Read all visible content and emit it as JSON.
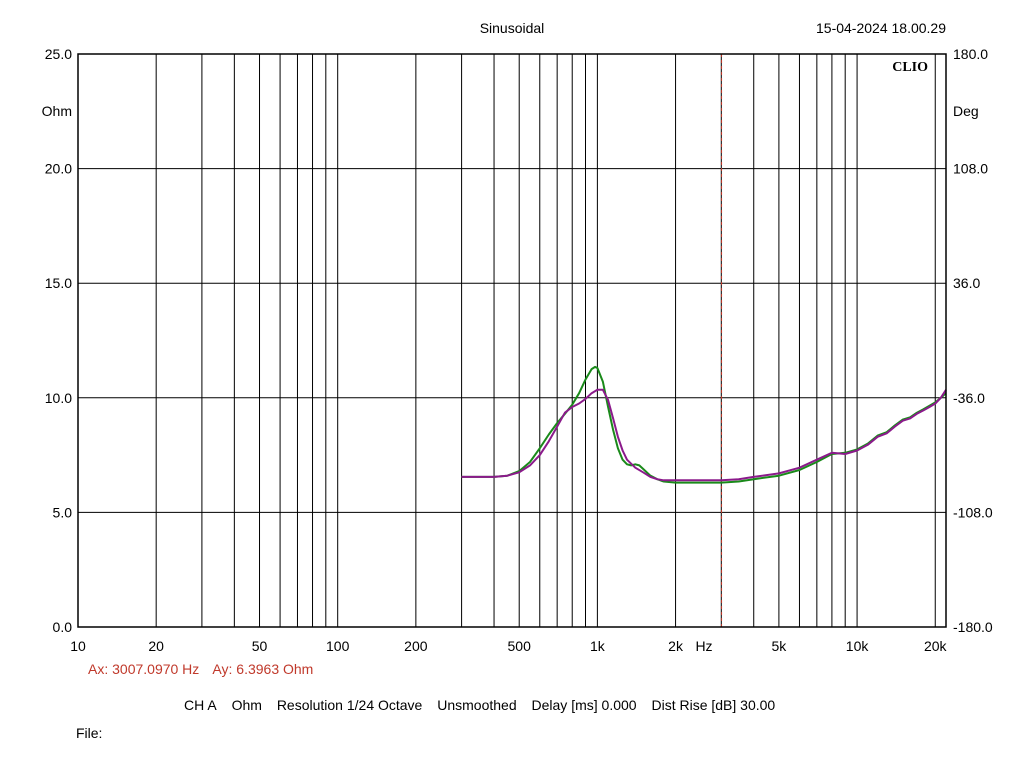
{
  "header": {
    "title": "Sinusoidal",
    "datetime": "15-04-2024 18.00.29",
    "brand": "CLIO"
  },
  "cursor": {
    "ax_label": "Ax: 3007.0970 Hz",
    "ay_label": "Ay: 6.3963 Ohm",
    "x_hz": 3007.097,
    "color": "#c0392b"
  },
  "info": {
    "channel": "CH A",
    "unit": "Ohm",
    "resolution": "Resolution 1/24 Octave",
    "smoothing": "Unsmoothed",
    "delay": "Delay [ms] 0.000",
    "dist_rise": "Dist Rise [dB] 30.00"
  },
  "file": {
    "label": "File:"
  },
  "chart_data": {
    "type": "line",
    "x_scale": "log",
    "xlim": [
      10,
      22000
    ],
    "ylim": [
      0,
      25
    ],
    "y2lim": [
      -180,
      180
    ],
    "ylabel": "Ohm",
    "y2label": "Deg",
    "xlabel": "Hz",
    "grid": true,
    "x_ticks": [
      {
        "v": 10,
        "label": "10"
      },
      {
        "v": 20,
        "label": "20"
      },
      {
        "v": 50,
        "label": "50"
      },
      {
        "v": 100,
        "label": "100"
      },
      {
        "v": 200,
        "label": "200"
      },
      {
        "v": 500,
        "label": "500"
      },
      {
        "v": 1000,
        "label": "1k"
      },
      {
        "v": 2000,
        "label": "2k"
      },
      {
        "v": 5000,
        "label": "5k"
      },
      {
        "v": 10000,
        "label": "10k"
      },
      {
        "v": 20000,
        "label": "20k"
      }
    ],
    "y_ticks": [
      {
        "v": 0,
        "label": "0.0"
      },
      {
        "v": 5,
        "label": "5.0"
      },
      {
        "v": 10,
        "label": "10.0"
      },
      {
        "v": 15,
        "label": "15.0"
      },
      {
        "v": 20,
        "label": "20.0"
      },
      {
        "v": 25,
        "label": "25.0"
      }
    ],
    "y2_ticks": [
      {
        "v": -180,
        "label": "-180.0"
      },
      {
        "v": -108,
        "label": "-108.0"
      },
      {
        "v": -36,
        "label": "-36.0"
      },
      {
        "v": 36,
        "label": "36.0"
      },
      {
        "v": 108,
        "label": "108.0"
      },
      {
        "v": 180,
        "label": "180.0"
      }
    ],
    "series": [
      {
        "color": "#1a8a1a",
        "points": [
          [
            300,
            6.55
          ],
          [
            350,
            6.55
          ],
          [
            400,
            6.55
          ],
          [
            450,
            6.6
          ],
          [
            500,
            6.8
          ],
          [
            550,
            7.2
          ],
          [
            600,
            7.8
          ],
          [
            650,
            8.4
          ],
          [
            700,
            8.9
          ],
          [
            750,
            9.3
          ],
          [
            800,
            9.7
          ],
          [
            850,
            10.2
          ],
          [
            900,
            10.8
          ],
          [
            950,
            11.25
          ],
          [
            980,
            11.35
          ],
          [
            1000,
            11.3
          ],
          [
            1050,
            10.7
          ],
          [
            1100,
            9.6
          ],
          [
            1150,
            8.6
          ],
          [
            1200,
            7.8
          ],
          [
            1250,
            7.3
          ],
          [
            1300,
            7.1
          ],
          [
            1350,
            7.05
          ],
          [
            1400,
            7.1
          ],
          [
            1450,
            7.05
          ],
          [
            1500,
            6.9
          ],
          [
            1600,
            6.6
          ],
          [
            1700,
            6.45
          ],
          [
            1800,
            6.35
          ],
          [
            2000,
            6.3
          ],
          [
            2500,
            6.3
          ],
          [
            3000,
            6.3
          ],
          [
            3500,
            6.35
          ],
          [
            4000,
            6.45
          ],
          [
            5000,
            6.6
          ],
          [
            6000,
            6.85
          ],
          [
            7000,
            7.2
          ],
          [
            8000,
            7.55
          ],
          [
            9000,
            7.6
          ],
          [
            10000,
            7.75
          ],
          [
            11000,
            8.0
          ],
          [
            12000,
            8.35
          ],
          [
            13000,
            8.5
          ],
          [
            14000,
            8.8
          ],
          [
            15000,
            9.05
          ],
          [
            16000,
            9.15
          ],
          [
            17000,
            9.35
          ],
          [
            18000,
            9.5
          ],
          [
            19000,
            9.65
          ],
          [
            20000,
            9.8
          ],
          [
            21000,
            10.0
          ],
          [
            22000,
            10.2
          ]
        ]
      },
      {
        "color": "#8b1a8b",
        "points": [
          [
            300,
            6.55
          ],
          [
            350,
            6.55
          ],
          [
            400,
            6.55
          ],
          [
            450,
            6.6
          ],
          [
            500,
            6.75
          ],
          [
            550,
            7.05
          ],
          [
            600,
            7.5
          ],
          [
            650,
            8.1
          ],
          [
            700,
            8.75
          ],
          [
            750,
            9.35
          ],
          [
            800,
            9.6
          ],
          [
            850,
            9.75
          ],
          [
            900,
            9.95
          ],
          [
            950,
            10.2
          ],
          [
            1000,
            10.35
          ],
          [
            1050,
            10.35
          ],
          [
            1100,
            9.9
          ],
          [
            1150,
            9.1
          ],
          [
            1200,
            8.3
          ],
          [
            1250,
            7.7
          ],
          [
            1300,
            7.3
          ],
          [
            1400,
            6.95
          ],
          [
            1500,
            6.75
          ],
          [
            1600,
            6.55
          ],
          [
            1700,
            6.45
          ],
          [
            1800,
            6.4
          ],
          [
            2000,
            6.4
          ],
          [
            2500,
            6.4
          ],
          [
            3000,
            6.4
          ],
          [
            3500,
            6.45
          ],
          [
            4000,
            6.55
          ],
          [
            5000,
            6.7
          ],
          [
            6000,
            6.95
          ],
          [
            7000,
            7.3
          ],
          [
            8000,
            7.6
          ],
          [
            9000,
            7.55
          ],
          [
            10000,
            7.7
          ],
          [
            11000,
            7.95
          ],
          [
            12000,
            8.3
          ],
          [
            13000,
            8.45
          ],
          [
            14000,
            8.75
          ],
          [
            15000,
            9.0
          ],
          [
            16000,
            9.1
          ],
          [
            17000,
            9.3
          ],
          [
            18000,
            9.45
          ],
          [
            19000,
            9.6
          ],
          [
            20000,
            9.75
          ],
          [
            21000,
            10.0
          ],
          [
            22000,
            10.35
          ]
        ]
      }
    ]
  }
}
